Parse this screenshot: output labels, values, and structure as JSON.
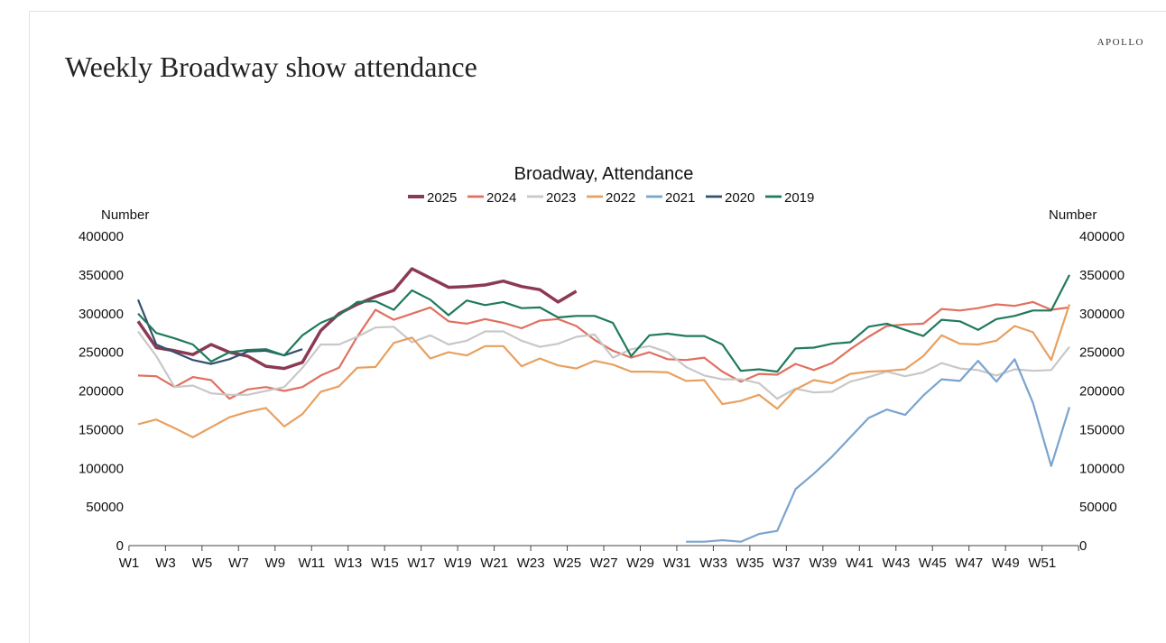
{
  "page": {
    "title": "Weekly Broadway show attendance",
    "brand": "APOLLO"
  },
  "chart_data": {
    "type": "line",
    "title": "Broadway, Attendance",
    "ylabel_left": "Number",
    "ylabel_right": "Number",
    "ylim": [
      0,
      400000
    ],
    "yticks": [
      "0",
      "50000",
      "100000",
      "150000",
      "200000",
      "250000",
      "300000",
      "350000",
      "400000"
    ],
    "ytick_values": [
      0,
      50000,
      100000,
      150000,
      200000,
      250000,
      300000,
      350000,
      400000
    ],
    "x_count": 52,
    "xtick_labels": [
      "W1",
      "W3",
      "W5",
      "W7",
      "W9",
      "W11",
      "W13",
      "W15",
      "W17",
      "W19",
      "W21",
      "W23",
      "W25",
      "W27",
      "W29",
      "W31",
      "W33",
      "W35",
      "W37",
      "W39",
      "W41",
      "W43",
      "W45",
      "W47",
      "W49",
      "W51"
    ],
    "legend_position": "top-center",
    "unit_multiplier": 1000,
    "series": [
      {
        "name": "2025",
        "color": "#8B3A52",
        "width": 3.5,
        "start": 1,
        "values": [
          290,
          256,
          252,
          247,
          260,
          250,
          245,
          232,
          229,
          237,
          278,
          300,
          312,
          322,
          330,
          358,
          346,
          334,
          335,
          337,
          342,
          335,
          331,
          315,
          329
        ]
      },
      {
        "name": "2024",
        "color": "#E07060",
        "width": 2.2,
        "start": 1,
        "values": [
          220,
          219,
          205,
          218,
          214,
          190,
          202,
          205,
          200,
          205,
          220,
          230,
          270,
          305,
          292,
          300,
          308,
          290,
          287,
          293,
          288,
          281,
          291,
          293,
          284,
          266,
          252,
          243,
          250,
          241,
          240,
          243,
          225,
          212,
          222,
          221,
          235,
          227,
          236,
          254,
          270,
          284,
          286,
          287,
          306,
          304,
          307,
          312,
          310,
          315,
          305,
          308
        ]
      },
      {
        "name": "2023",
        "color": "#C8C8C8",
        "width": 2.2,
        "start": 1,
        "values": [
          277,
          245,
          205,
          207,
          197,
          195,
          195,
          200,
          205,
          230,
          260,
          260,
          270,
          282,
          283,
          263,
          272,
          260,
          265,
          277,
          277,
          265,
          257,
          261,
          270,
          273,
          243,
          254,
          258,
          250,
          231,
          220,
          215,
          215,
          210,
          190,
          203,
          198,
          199,
          212,
          218,
          225,
          219,
          224,
          236,
          229,
          227,
          220,
          228,
          226,
          227,
          257
        ]
      },
      {
        "name": "2022",
        "color": "#E8A060",
        "width": 2.2,
        "start": 1,
        "values": [
          157,
          163,
          152,
          140,
          153,
          166,
          173,
          178,
          154,
          170,
          199,
          206,
          230,
          231,
          262,
          269,
          242,
          250,
          246,
          258,
          258,
          232,
          242,
          233,
          229,
          239,
          234,
          225,
          225,
          224,
          213,
          214,
          183,
          187,
          195,
          177,
          202,
          214,
          210,
          222,
          225,
          226,
          228,
          245,
          272,
          261,
          260,
          265,
          284,
          276,
          240,
          312
        ]
      },
      {
        "name": "2021",
        "color": "#7BA3CF",
        "width": 2.2,
        "start": 31,
        "values": [
          5,
          5,
          7,
          5,
          15,
          19,
          73,
          93,
          115,
          140,
          165,
          176,
          169,
          194,
          215,
          213,
          239,
          212,
          241,
          185,
          103,
          179
        ]
      },
      {
        "name": "2020",
        "color": "#34506E",
        "width": 2.2,
        "start": 1,
        "values": [
          318,
          260,
          250,
          240,
          235,
          241,
          251,
          252,
          246,
          254
        ]
      },
      {
        "name": "2019",
        "color": "#1F7A5C",
        "width": 2.2,
        "start": 1,
        "values": [
          300,
          275,
          268,
          260,
          238,
          250,
          253,
          254,
          246,
          272,
          288,
          298,
          315,
          316,
          305,
          330,
          318,
          298,
          317,
          311,
          315,
          307,
          308,
          295,
          297,
          297,
          288,
          245,
          272,
          274,
          271,
          271,
          260,
          226,
          228,
          225,
          255,
          256,
          261,
          263,
          283,
          287,
          279,
          271,
          292,
          290,
          279,
          293,
          297,
          304,
          304,
          350
        ]
      }
    ]
  }
}
